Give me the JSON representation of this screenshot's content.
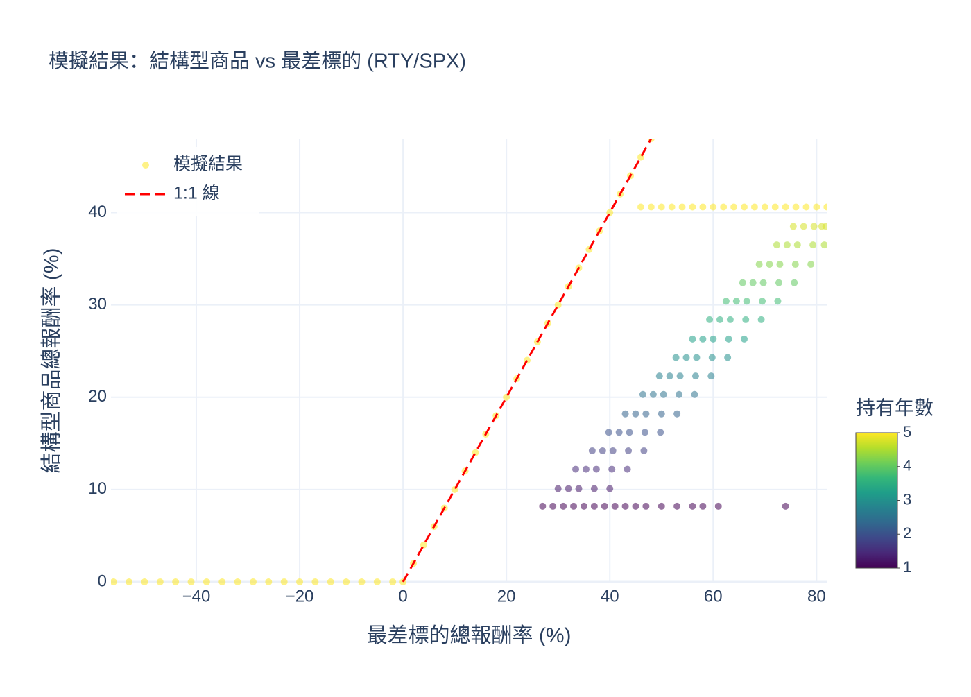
{
  "chart_data": {
    "type": "scatter",
    "title": "模擬結果：結構型商品 vs 最差標的 (RTY/SPX)",
    "x_label": "最差標的總報酬率 (%)",
    "y_label": "結構型商品總報酬率 (%)",
    "xlim": [
      -56.5,
      82.1
    ],
    "ylim": [
      0,
      48
    ],
    "xticks": [
      {
        "value": -40,
        "label": "−40"
      },
      {
        "value": -20,
        "label": "−20"
      },
      0,
      20,
      40,
      60,
      80
    ],
    "yticks": [
      0,
      10,
      20,
      30,
      40
    ],
    "grid": true,
    "legend": "top-left",
    "colorbar": {
      "title": "持有年數",
      "range": [
        1,
        5
      ],
      "ticks": [
        1,
        2,
        3,
        4,
        5
      ],
      "colorscale": [
        "#440154",
        "#482878",
        "#3e4989",
        "#31688e",
        "#26828e",
        "#1f9e89",
        "#35b779",
        "#6ece58",
        "#b5de2b",
        "#fde725"
      ]
    },
    "series": [
      {
        "name": "模擬結果",
        "color": "#fde725",
        "x": [
          -56,
          -53,
          -50,
          -47,
          -44,
          -41,
          -38,
          -35,
          -32,
          -29,
          -26,
          -23,
          -20,
          -17,
          -14,
          -11,
          -8,
          -5,
          -2,
          0,
          2,
          4,
          6,
          8,
          10,
          12,
          14,
          16,
          18,
          20,
          22,
          24,
          26,
          28,
          30,
          32,
          34,
          36,
          38,
          40,
          42,
          44,
          46,
          48,
          46,
          48,
          50,
          52,
          54,
          56,
          58,
          60,
          62,
          64,
          66,
          68,
          70,
          72,
          74,
          76,
          78,
          80,
          82,
          27,
          29,
          31,
          33,
          35,
          37,
          39,
          41,
          43,
          45,
          47,
          50,
          53,
          56,
          58,
          61,
          74,
          30,
          32,
          34,
          37,
          40,
          33.4,
          35.4,
          37.4,
          40.4,
          43.4,
          36.6,
          38.6,
          40.6,
          43.6,
          46.6,
          39.8,
          41.8,
          43.8,
          46.8,
          49.8,
          43,
          45,
          47,
          50,
          53,
          46.4,
          48.4,
          50.4,
          53.4,
          56.4,
          49.6,
          51.6,
          53.6,
          56.6,
          59.6,
          52.8,
          54.8,
          56.8,
          59.8,
          62.8,
          56,
          58,
          60,
          63,
          66,
          59.3,
          61.3,
          63.3,
          66.3,
          69.3,
          62.5,
          64.5,
          66.5,
          69.5,
          72.5,
          65.7,
          67.7,
          69.7,
          72.7,
          75.7,
          68.9,
          70.9,
          72.9,
          75.9,
          78.9,
          72.3,
          74.3,
          76.3,
          79.3,
          81.5,
          75.5,
          77.5,
          79.5,
          81,
          81.8
        ],
        "y": [
          0,
          0,
          0,
          0,
          0,
          0,
          0,
          0,
          0,
          0,
          0,
          0,
          0,
          0,
          0,
          0,
          0,
          0,
          0,
          0,
          2,
          4,
          6,
          8,
          10,
          12,
          14,
          16,
          18,
          20,
          22,
          24,
          26,
          28,
          30,
          32,
          34,
          36,
          38,
          40,
          42,
          44,
          46,
          48,
          40.6,
          40.6,
          40.6,
          40.6,
          40.6,
          40.6,
          40.6,
          40.6,
          40.6,
          40.6,
          40.6,
          40.6,
          40.6,
          40.6,
          40.6,
          40.6,
          40.6,
          40.6,
          40.6,
          8.2,
          8.2,
          8.2,
          8.2,
          8.2,
          8.2,
          8.2,
          8.2,
          8.2,
          8.2,
          8.2,
          8.2,
          8.2,
          8.2,
          8.2,
          8.2,
          8.2,
          10.1,
          10.1,
          10.1,
          10.1,
          10.1,
          12.2,
          12.2,
          12.2,
          12.2,
          12.2,
          14.2,
          14.2,
          14.2,
          14.2,
          14.2,
          16.2,
          16.2,
          16.2,
          16.2,
          16.2,
          18.2,
          18.2,
          18.2,
          18.2,
          18.2,
          20.3,
          20.3,
          20.3,
          20.3,
          20.3,
          22.3,
          22.3,
          22.3,
          22.3,
          22.3,
          24.3,
          24.3,
          24.3,
          24.3,
          24.3,
          26.3,
          26.3,
          26.3,
          26.3,
          26.3,
          28.4,
          28.4,
          28.4,
          28.4,
          28.4,
          30.4,
          30.4,
          30.4,
          30.4,
          30.4,
          32.4,
          32.4,
          32.4,
          32.4,
          32.4,
          34.4,
          34.4,
          34.4,
          34.4,
          34.4,
          36.5,
          36.5,
          36.5,
          36.5,
          36.5,
          38.5,
          38.5,
          38.5,
          38.5,
          38.5
        ],
        "years": [
          5,
          5,
          5,
          5,
          5,
          5,
          5,
          5,
          5,
          5,
          5,
          5,
          5,
          5,
          5,
          5,
          5,
          5,
          5,
          5,
          5,
          5,
          5,
          5,
          5,
          5,
          5,
          5,
          5,
          5,
          5,
          5,
          5,
          5,
          5,
          5,
          5,
          5,
          5,
          5,
          5,
          5,
          5,
          5,
          5,
          5,
          5,
          5,
          5,
          5,
          5,
          5,
          5,
          5,
          5,
          5,
          5,
          5,
          5,
          5,
          5,
          5,
          5,
          1,
          1,
          1,
          1,
          1,
          1,
          1,
          1,
          1,
          1,
          1,
          1,
          1,
          1,
          1,
          1,
          1,
          1.25,
          1.25,
          1.25,
          1.25,
          1.25,
          1.5,
          1.5,
          1.5,
          1.5,
          1.5,
          1.75,
          1.75,
          1.75,
          1.75,
          1.75,
          2,
          2,
          2,
          2,
          2,
          2.25,
          2.25,
          2.25,
          2.25,
          2.25,
          2.5,
          2.5,
          2.5,
          2.5,
          2.5,
          2.75,
          2.75,
          2.75,
          2.75,
          2.75,
          3,
          3,
          3,
          3,
          3,
          3.25,
          3.25,
          3.25,
          3.25,
          3.25,
          3.5,
          3.5,
          3.5,
          3.5,
          3.5,
          3.75,
          3.75,
          3.75,
          3.75,
          3.75,
          4,
          4,
          4,
          4,
          4,
          4.25,
          4.25,
          4.25,
          4.25,
          4.25,
          4.5,
          4.5,
          4.5,
          4.5,
          4.5,
          4.75,
          4.75,
          4.75,
          4.75,
          4.75
        ]
      },
      {
        "name": "1:1 線",
        "type": "line",
        "color": "red",
        "dash": true,
        "x": [
          0,
          48
        ],
        "y": [
          0,
          48
        ]
      }
    ]
  }
}
